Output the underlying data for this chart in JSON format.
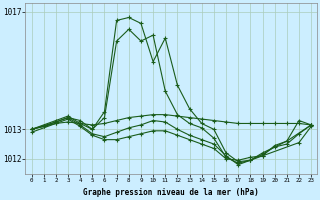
{
  "xlabel": "Graphe pression niveau de la mer (hPa)",
  "background_color": "#cceeff",
  "grid_color": "#aaccbb",
  "line_color": "#1a5c1a",
  "marker": "+",
  "ylim": [
    1011.5,
    1017.3
  ],
  "xlim": [
    -0.5,
    23.5
  ],
  "xticks": [
    0,
    1,
    2,
    3,
    4,
    5,
    6,
    7,
    8,
    9,
    10,
    11,
    12,
    13,
    14,
    15,
    16,
    17,
    18,
    19,
    20,
    21,
    22,
    23
  ],
  "ytick_positions": [
    1012,
    1013,
    1017
  ],
  "ytick_labels": [
    "1012",
    "1013",
    "1017"
  ],
  "lines": [
    {
      "x": [
        0,
        1,
        2,
        3,
        4,
        5,
        6,
        7,
        8,
        9,
        10,
        11,
        12,
        13,
        14,
        15,
        16,
        17,
        18,
        19,
        20,
        21,
        22,
        23
      ],
      "y": [
        1013.0,
        1013.1,
        1013.2,
        1013.25,
        1013.2,
        1013.15,
        1013.2,
        1013.3,
        1013.4,
        1013.45,
        1013.5,
        1013.5,
        1013.45,
        1013.4,
        1013.35,
        1013.3,
        1013.25,
        1013.2,
        1013.2,
        1013.2,
        1013.2,
        1013.2,
        1013.2,
        1013.15
      ]
    },
    {
      "x": [
        0,
        1,
        2,
        3,
        4,
        5,
        6,
        7,
        8,
        9,
        10,
        11,
        12,
        13,
        14,
        15,
        16,
        17,
        18,
        19,
        20,
        21,
        22,
        23
      ],
      "y": [
        1013.0,
        1013.1,
        1013.25,
        1013.4,
        1013.3,
        1013.0,
        1013.6,
        1016.7,
        1016.8,
        1016.6,
        1015.3,
        1016.1,
        1014.5,
        1013.7,
        1013.2,
        1013.0,
        1012.2,
        1011.9,
        1011.95,
        1012.1,
        1012.45,
        1012.6,
        1013.3,
        1013.15
      ]
    },
    {
      "x": [
        0,
        2,
        3,
        4,
        5,
        6,
        7,
        8,
        9,
        10,
        11,
        12,
        13,
        14,
        15,
        16,
        17,
        18,
        19,
        21,
        23
      ],
      "y": [
        1013.0,
        1013.3,
        1013.45,
        1013.2,
        1013.0,
        1013.4,
        1016.0,
        1016.4,
        1016.0,
        1016.2,
        1014.3,
        1013.5,
        1013.2,
        1013.05,
        1012.7,
        1012.05,
        1011.85,
        1011.95,
        1012.2,
        1012.6,
        1013.15
      ]
    },
    {
      "x": [
        0,
        2,
        3,
        4,
        5,
        6,
        7,
        8,
        9,
        10,
        11,
        12,
        13,
        14,
        15,
        16,
        17,
        18,
        19,
        20,
        21,
        22,
        23
      ],
      "y": [
        1013.0,
        1013.25,
        1013.4,
        1013.15,
        1012.85,
        1012.75,
        1012.9,
        1013.05,
        1013.15,
        1013.3,
        1013.25,
        1013.0,
        1012.8,
        1012.65,
        1012.5,
        1012.1,
        1011.8,
        1011.95,
        1012.15,
        1012.4,
        1012.5,
        1012.85,
        1013.15
      ]
    },
    {
      "x": [
        0,
        2,
        3,
        4,
        5,
        6,
        7,
        8,
        9,
        10,
        11,
        12,
        13,
        14,
        15,
        16,
        17,
        18,
        19,
        22,
        23
      ],
      "y": [
        1012.9,
        1013.2,
        1013.35,
        1013.1,
        1012.8,
        1012.65,
        1012.65,
        1012.75,
        1012.85,
        1012.95,
        1012.95,
        1012.8,
        1012.65,
        1012.5,
        1012.35,
        1012.0,
        1011.95,
        1012.05,
        1012.1,
        1012.55,
        1013.1
      ]
    }
  ]
}
